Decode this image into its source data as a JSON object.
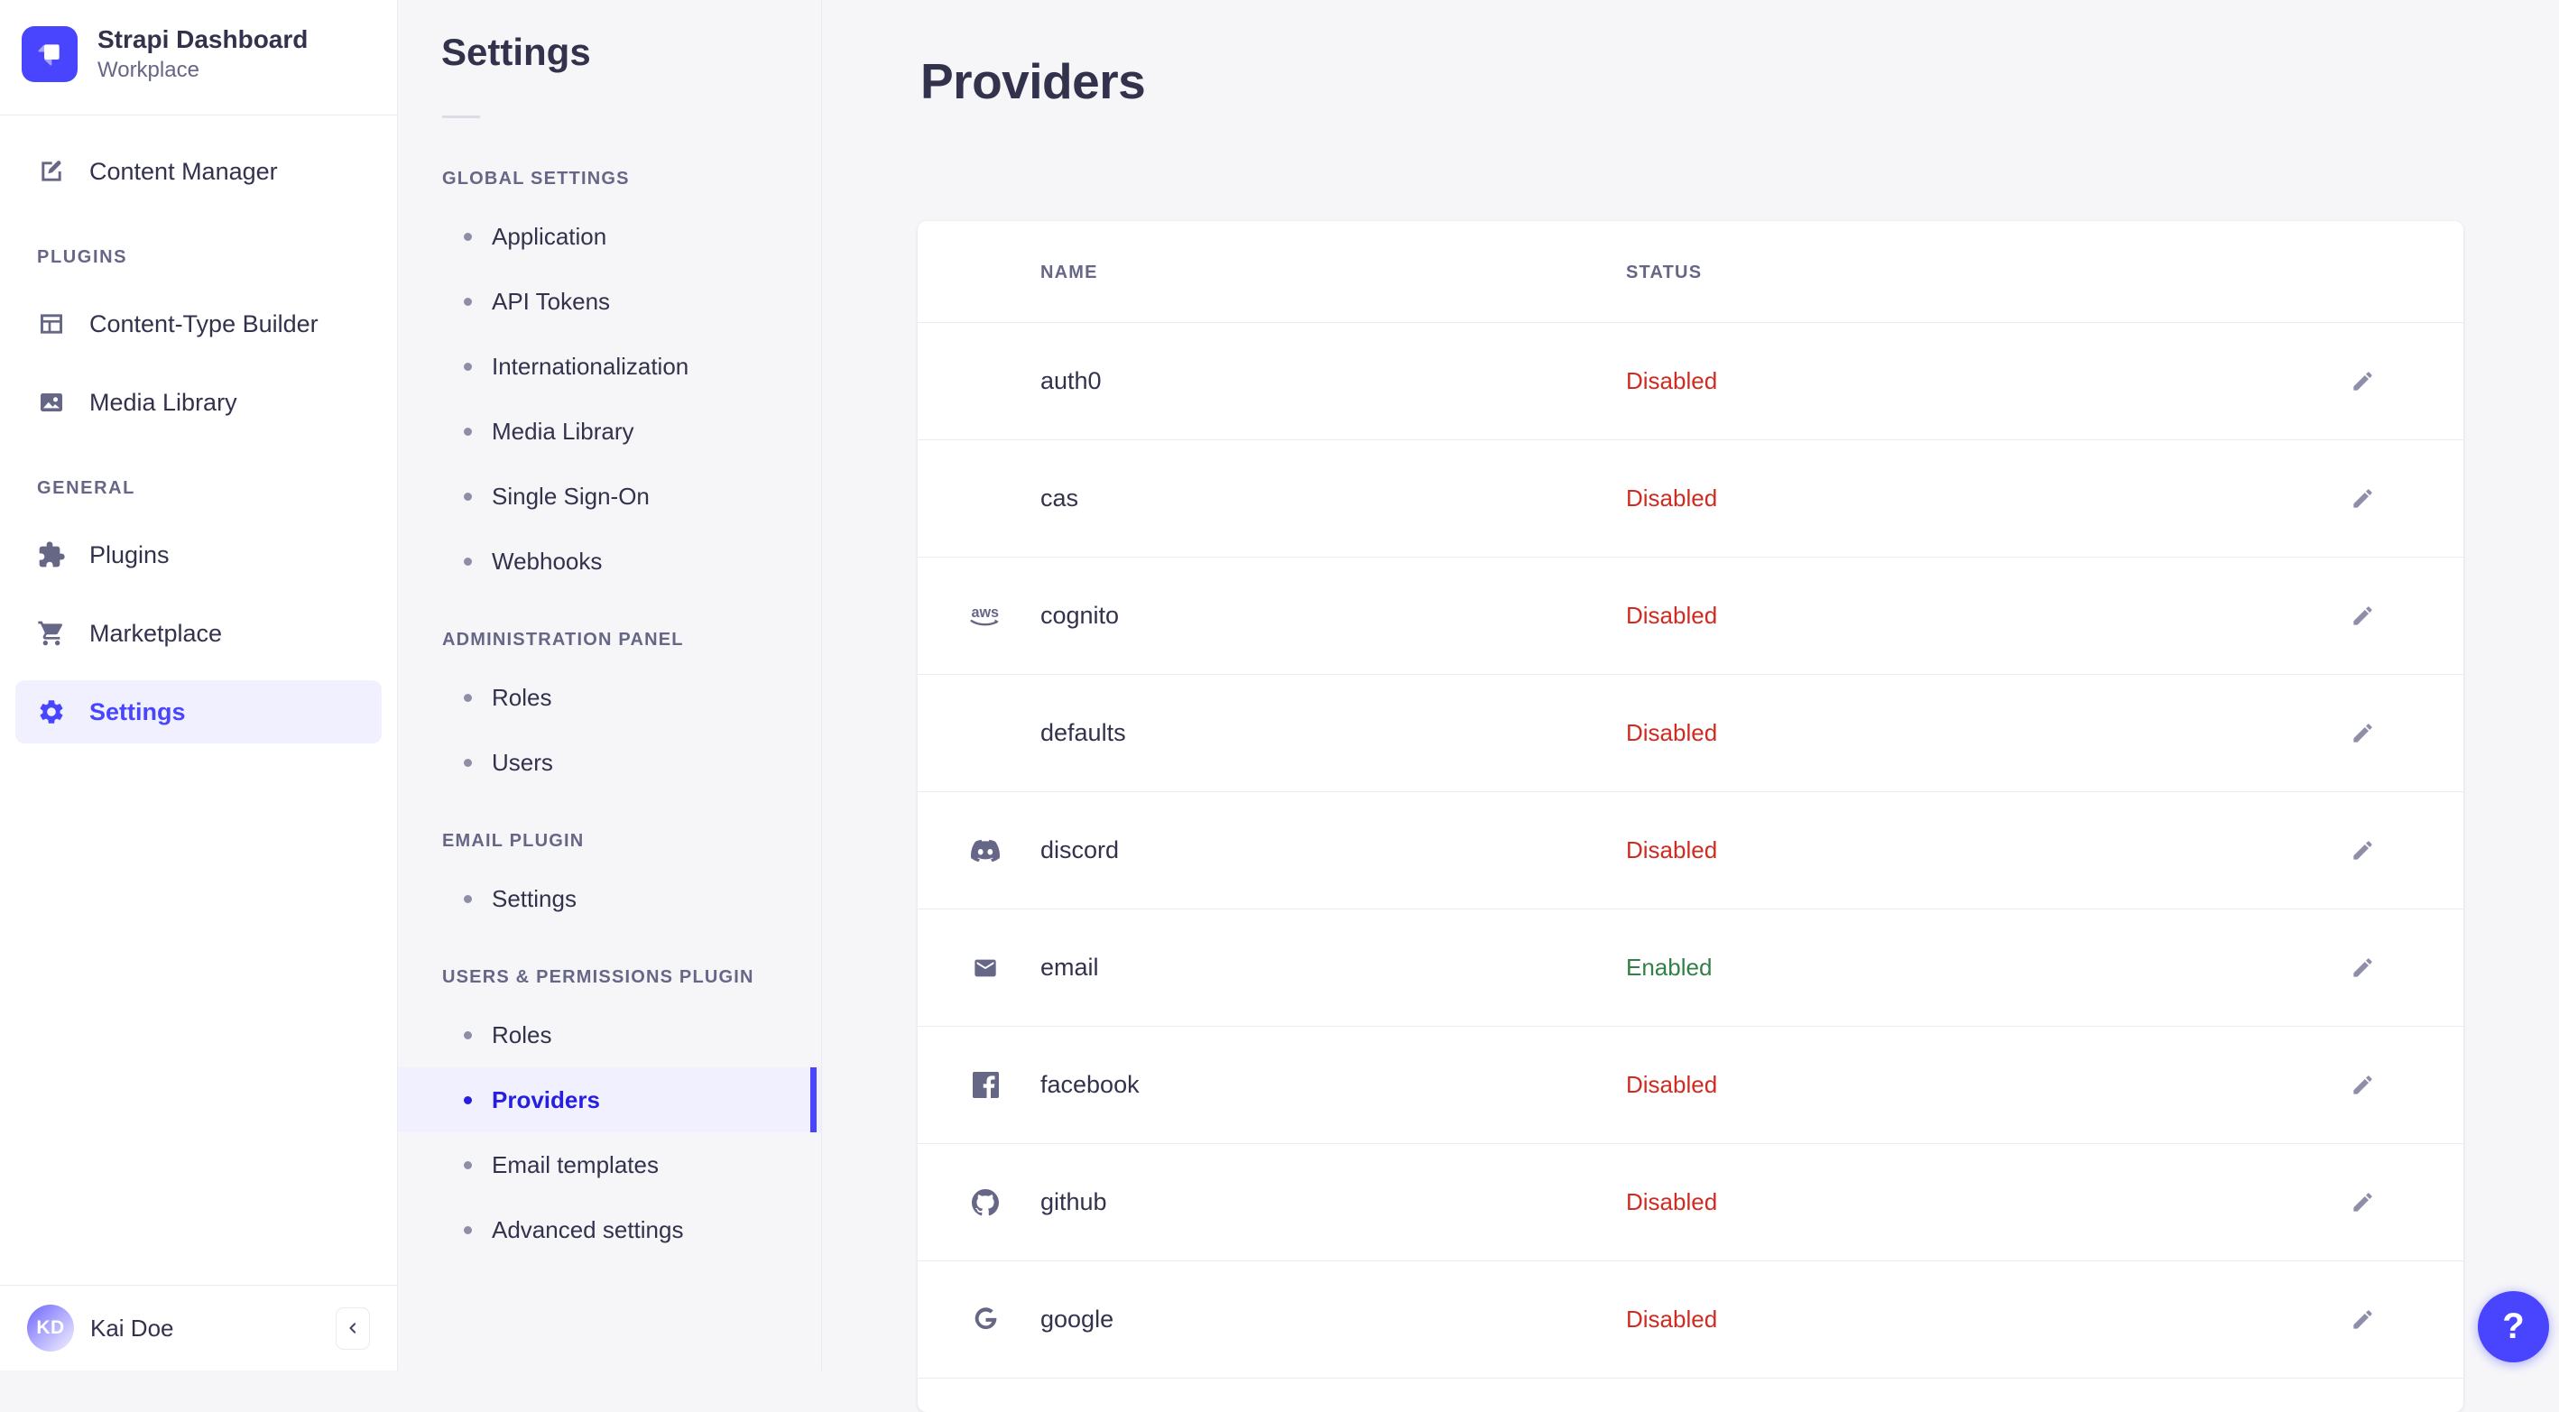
{
  "brand": {
    "title": "Strapi Dashboard",
    "subtitle": "Workplace",
    "logo_icon": "strapi-logo-icon"
  },
  "sidebar": {
    "sections": [
      {
        "label": "",
        "items": [
          {
            "label": "Content Manager",
            "icon": "content-manager-icon",
            "active": false
          }
        ]
      },
      {
        "label": "PLUGINS",
        "items": [
          {
            "label": "Content-Type Builder",
            "icon": "content-type-builder-icon",
            "active": false
          },
          {
            "label": "Media Library",
            "icon": "media-library-icon",
            "active": false
          }
        ]
      },
      {
        "label": "GENERAL",
        "items": [
          {
            "label": "Plugins",
            "icon": "plugins-icon",
            "active": false
          },
          {
            "label": "Marketplace",
            "icon": "marketplace-icon",
            "active": false
          },
          {
            "label": "Settings",
            "icon": "settings-gear-icon",
            "active": true
          }
        ]
      }
    ],
    "user": {
      "name": "Kai Doe",
      "initials": "KD"
    },
    "collapse_icon": "chevron-left-icon"
  },
  "subnav": {
    "title": "Settings",
    "sections": [
      {
        "label": "GLOBAL SETTINGS",
        "items": [
          {
            "label": "Application"
          },
          {
            "label": "API Tokens"
          },
          {
            "label": "Internationalization"
          },
          {
            "label": "Media Library"
          },
          {
            "label": "Single Sign-On"
          },
          {
            "label": "Webhooks"
          }
        ]
      },
      {
        "label": "ADMINISTRATION PANEL",
        "items": [
          {
            "label": "Roles"
          },
          {
            "label": "Users"
          }
        ]
      },
      {
        "label": "EMAIL PLUGIN",
        "items": [
          {
            "label": "Settings"
          }
        ]
      },
      {
        "label": "USERS & PERMISSIONS PLUGIN",
        "items": [
          {
            "label": "Roles"
          },
          {
            "label": "Providers",
            "active": true
          },
          {
            "label": "Email templates"
          },
          {
            "label": "Advanced settings"
          }
        ]
      }
    ]
  },
  "main": {
    "title": "Providers",
    "table": {
      "columns": [
        "NAME",
        "STATUS"
      ],
      "edit_icon": "edit-pencil-icon",
      "rows": [
        {
          "name": "auth0",
          "status": "Disabled",
          "icon": ""
        },
        {
          "name": "cas",
          "status": "Disabled",
          "icon": ""
        },
        {
          "name": "cognito",
          "status": "Disabled",
          "icon": "aws-icon"
        },
        {
          "name": "defaults",
          "status": "Disabled",
          "icon": ""
        },
        {
          "name": "discord",
          "status": "Disabled",
          "icon": "discord-icon"
        },
        {
          "name": "email",
          "status": "Enabled",
          "icon": "email-icon"
        },
        {
          "name": "facebook",
          "status": "Disabled",
          "icon": "facebook-icon"
        },
        {
          "name": "github",
          "status": "Disabled",
          "icon": "github-icon"
        },
        {
          "name": "google",
          "status": "Disabled",
          "icon": "google-icon"
        }
      ]
    }
  },
  "help": {
    "label": "?"
  },
  "colors": {
    "primary": "#4945ff",
    "active_text": "#271fe0",
    "active_bg": "#f0f0ff",
    "danger": "#d02b20",
    "success": "#328048",
    "text": "#32324d",
    "text_secondary": "#666687",
    "border": "#eaeaef",
    "background": "#f6f6f9"
  }
}
